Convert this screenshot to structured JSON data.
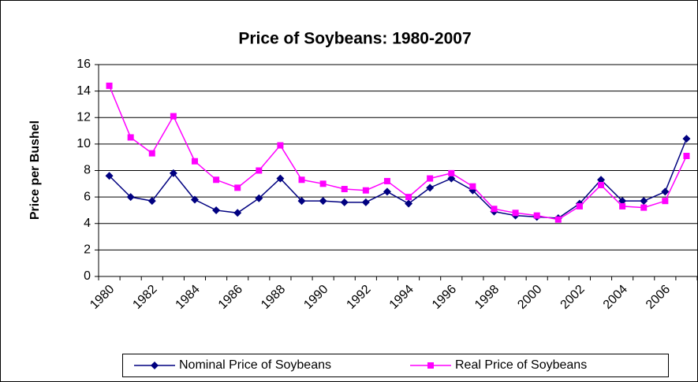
{
  "chart_data": {
    "type": "line",
    "title": "Price of Soybeans: 1980-2007",
    "ylabel": "Price per Bushel",
    "categories": [
      "1980",
      null,
      "1982",
      null,
      "1984",
      null,
      "1986",
      null,
      "1988",
      null,
      "1990",
      null,
      "1992",
      null,
      "1994",
      null,
      "1996",
      null,
      "1998",
      null,
      "2000",
      null,
      "2002",
      null,
      "2004",
      null,
      "2006",
      null
    ],
    "series": [
      {
        "name": "Nominal Price of Soybeans",
        "color": "#000080",
        "values": [
          7.6,
          6.0,
          5.7,
          7.8,
          5.8,
          5.0,
          4.8,
          5.9,
          7.4,
          5.7,
          5.7,
          5.6,
          5.6,
          6.4,
          5.5,
          6.7,
          7.4,
          6.5,
          4.9,
          4.6,
          4.5,
          4.4,
          5.5,
          7.3,
          5.7,
          5.7,
          6.4,
          10.4
        ]
      },
      {
        "name": "Real Price of Soybeans",
        "color": "#ff00ff",
        "values": [
          14.4,
          10.5,
          9.3,
          12.1,
          8.7,
          7.3,
          6.7,
          8.0,
          9.9,
          7.3,
          7.0,
          6.6,
          6.5,
          7.2,
          6.0,
          7.4,
          7.8,
          6.8,
          5.1,
          4.8,
          4.6,
          4.3,
          5.3,
          6.9,
          5.3,
          5.2,
          5.7,
          9.1
        ]
      }
    ],
    "ylim": [
      0,
      16
    ],
    "yticks": [
      0,
      2,
      4,
      6,
      8,
      10,
      12,
      14,
      16
    ],
    "grid": true,
    "legend": "bottom"
  }
}
